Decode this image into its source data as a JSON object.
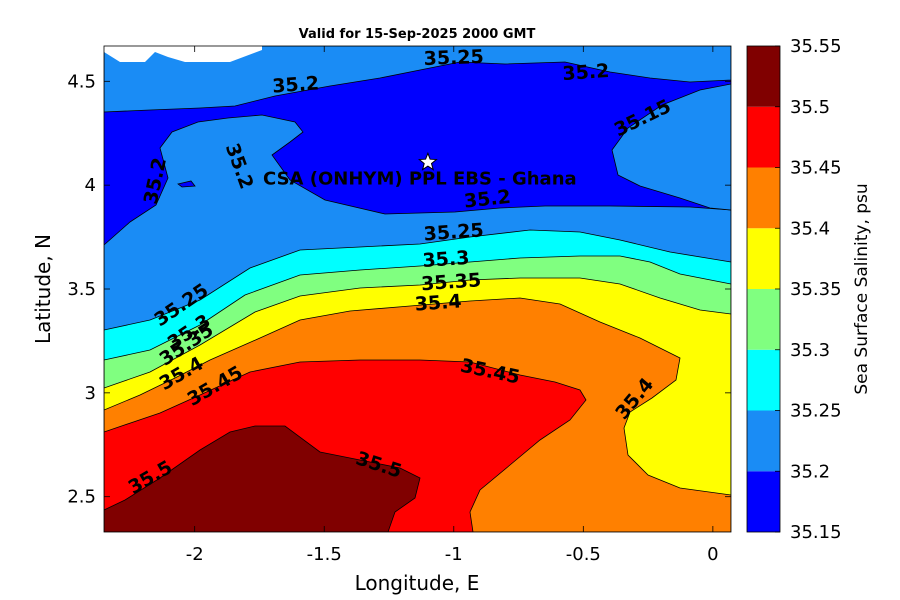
{
  "chart_data": {
    "type": "contour",
    "title": "Valid for 15-Sep-2025 2000 GMT",
    "xlabel": "Longitude, E",
    "ylabel": "Latitude, N",
    "xlim": [
      -2.35,
      0.07
    ],
    "ylim": [
      2.33,
      4.67
    ],
    "x_ticks": [
      -2,
      -1.5,
      -1,
      -0.5,
      0
    ],
    "x_tick_labels": [
      "-2",
      "-1.5",
      "-1",
      "-0.5",
      "0"
    ],
    "y_ticks": [
      2.5,
      3,
      3.5,
      4,
      4.5
    ],
    "y_tick_labels": [
      "2.5",
      "3",
      "3.5",
      "4",
      "4.5"
    ],
    "colorbar": {
      "label": "Sea Surface Salinity, psu",
      "levels": [
        35.15,
        35.2,
        35.25,
        35.3,
        35.35,
        35.4,
        35.45,
        35.5,
        35.55
      ],
      "tick_labels": [
        "35.15",
        "35.2",
        "35.25",
        "35.3",
        "35.35",
        "35.4",
        "35.45",
        "35.5",
        "35.55"
      ],
      "colors": [
        "#0000ff",
        "#1a8cf5",
        "#00ffff",
        "#80ff80",
        "#ffff00",
        "#ff8000",
        "#ff0000",
        "#800000"
      ]
    },
    "contour_labels": [
      {
        "text": "35.25",
        "lon": -1.0,
        "lat": 4.61
      },
      {
        "text": "35.2",
        "lon": -0.49,
        "lat": 4.54
      },
      {
        "text": "35.2",
        "lon": -1.61,
        "lat": 4.48
      },
      {
        "text": "35.15",
        "lon": -0.27,
        "lat": 4.32
      },
      {
        "text": "35.2",
        "lon": -2.15,
        "lat": 4.02
      },
      {
        "text": "35.2",
        "lon": -1.83,
        "lat": 4.09
      },
      {
        "text": "35.2",
        "lon": -0.87,
        "lat": 3.93
      },
      {
        "text": "35.25",
        "lon": -1.0,
        "lat": 3.77
      },
      {
        "text": "35.3",
        "lon": -1.03,
        "lat": 3.64
      },
      {
        "text": "35.35",
        "lon": -1.01,
        "lat": 3.53
      },
      {
        "text": "35.4",
        "lon": -1.06,
        "lat": 3.43
      },
      {
        "text": "35.25",
        "lon": -2.05,
        "lat": 3.42
      },
      {
        "text": "35.3",
        "lon": -2.02,
        "lat": 3.29
      },
      {
        "text": "35.35",
        "lon": -2.03,
        "lat": 3.23
      },
      {
        "text": "35.4",
        "lon": -2.05,
        "lat": 3.09
      },
      {
        "text": "35.45",
        "lon": -1.92,
        "lat": 3.03
      },
      {
        "text": "35.45",
        "lon": -0.86,
        "lat": 3.1
      },
      {
        "text": "35.4",
        "lon": -0.3,
        "lat": 2.97
      },
      {
        "text": "35.5",
        "lon": -2.17,
        "lat": 2.59
      },
      {
        "text": "35.5",
        "lon": -1.29,
        "lat": 2.65
      }
    ],
    "station": {
      "name": "CSA (ONHYM) PPL EBS  - Ghana",
      "lon": -1.1,
      "lat": 4.11,
      "marker": "star"
    }
  }
}
